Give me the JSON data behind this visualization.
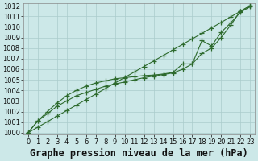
{
  "title": "Graphe pression niveau de la mer (hPa)",
  "xlim": [
    0,
    23
  ],
  "ylim": [
    1000,
    1012
  ],
  "x_ticks": [
    0,
    1,
    2,
    3,
    4,
    5,
    6,
    7,
    8,
    9,
    10,
    11,
    12,
    13,
    14,
    15,
    16,
    17,
    18,
    19,
    20,
    21,
    22,
    23
  ],
  "y_ticks": [
    1000,
    1001,
    1002,
    1003,
    1004,
    1005,
    1006,
    1007,
    1008,
    1009,
    1010,
    1011,
    1012
  ],
  "line_straight": [
    1000.0,
    1000.52,
    1001.04,
    1001.57,
    1002.09,
    1002.61,
    1003.13,
    1003.65,
    1004.17,
    1004.7,
    1005.22,
    1005.74,
    1006.26,
    1006.78,
    1007.3,
    1007.83,
    1008.35,
    1008.87,
    1009.39,
    1009.91,
    1010.43,
    1010.96,
    1011.48,
    1012.0
  ],
  "line_mid": [
    1000.0,
    1001.1,
    1001.8,
    1002.5,
    1003.0,
    1003.5,
    1003.8,
    1004.1,
    1004.4,
    1004.6,
    1004.8,
    1005.0,
    1005.2,
    1005.35,
    1005.5,
    1005.65,
    1006.0,
    1006.5,
    1007.5,
    1008.0,
    1009.0,
    1010.2,
    1011.5,
    1012.0
  ],
  "line_zigzag": [
    1000.0,
    1001.1,
    1002.0,
    1002.8,
    1003.5,
    1004.0,
    1004.4,
    1004.7,
    1004.9,
    1005.1,
    1005.2,
    1005.3,
    1005.4,
    1005.45,
    1005.55,
    1005.7,
    1006.5,
    1006.5,
    1008.7,
    1008.2,
    1009.5,
    1010.4,
    1011.4,
    1011.9
  ],
  "line_color": "#2d6a2d",
  "bg_color": "#cce8e8",
  "grid_color": "#aacccc",
  "marker": "+",
  "marker_size": 4,
  "lw": 0.8,
  "title_fontsize": 8.5,
  "tick_fontsize": 6.0
}
